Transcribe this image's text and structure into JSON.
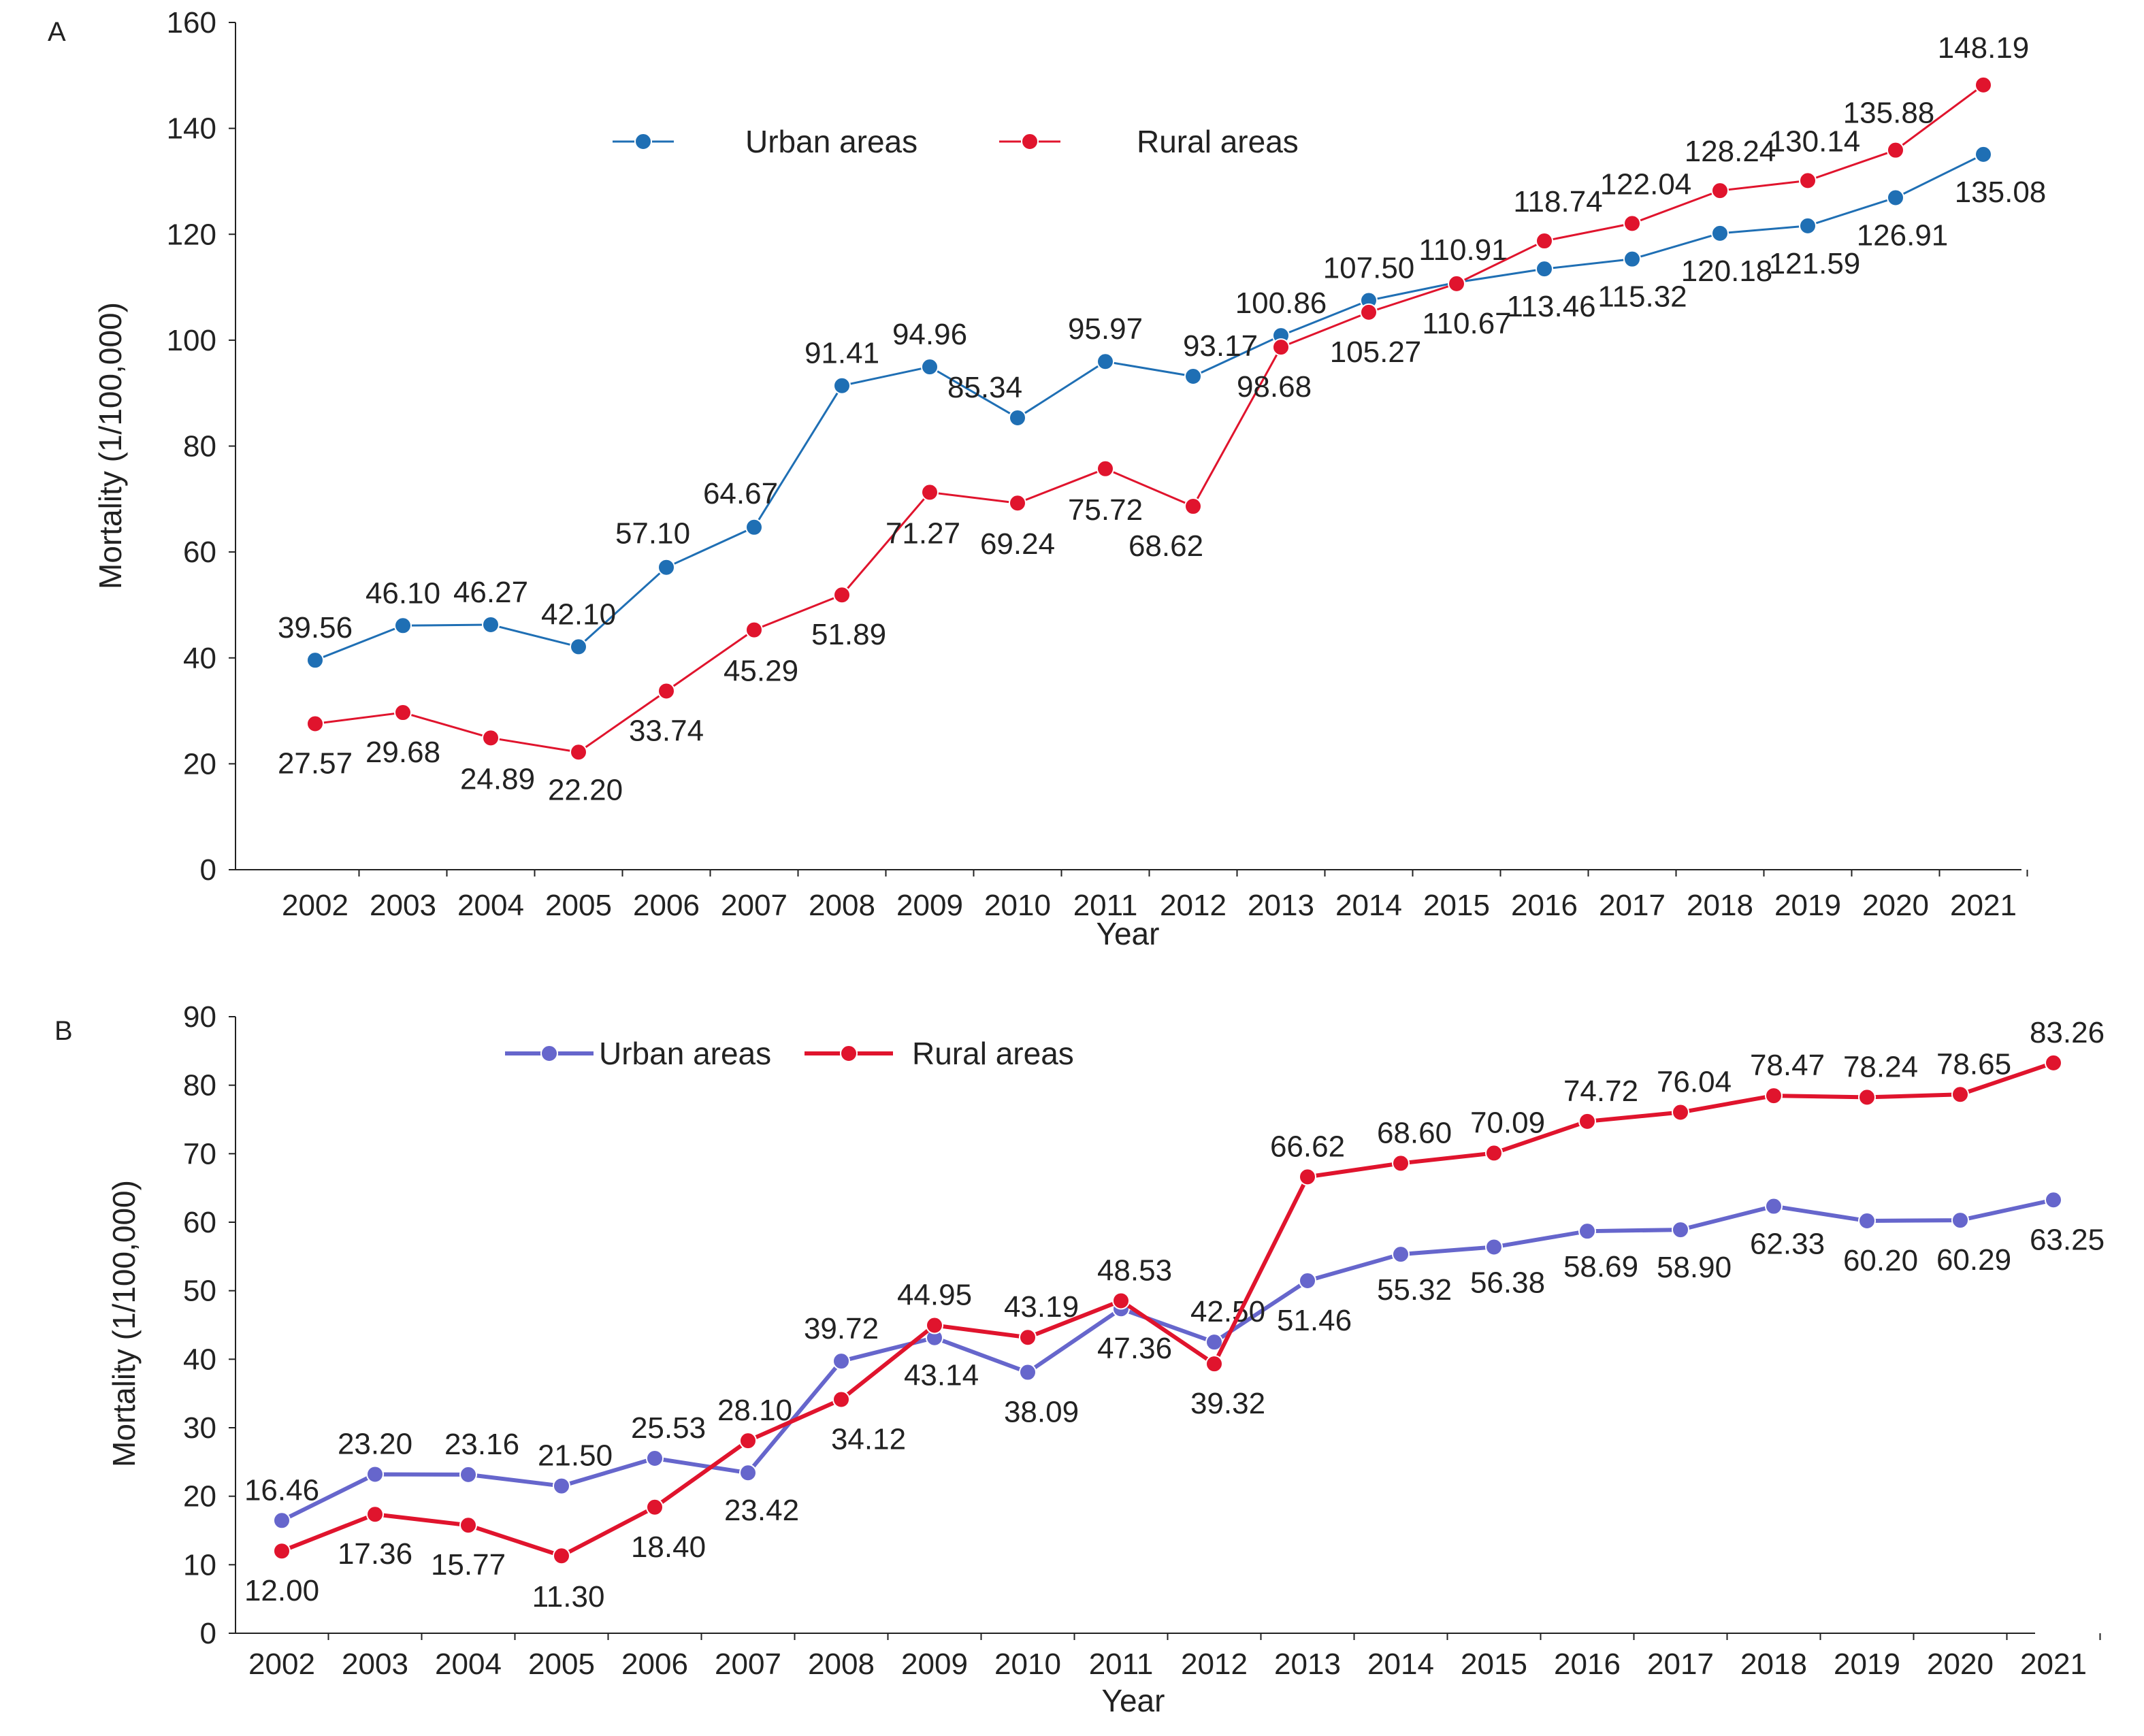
{
  "chart_data": [
    {
      "panel": "A",
      "type": "line",
      "xlabel": "Year",
      "ylabel": "Mortality (1/100,000)",
      "ylim": [
        0,
        160
      ],
      "yticks": [
        0,
        20,
        40,
        60,
        80,
        100,
        120,
        140,
        160
      ],
      "categories": [
        "2002",
        "2003",
        "2004",
        "2005",
        "2006",
        "2007",
        "2008",
        "2009",
        "2010",
        "2011",
        "2012",
        "2013",
        "2014",
        "2015",
        "2016",
        "2017",
        "2018",
        "2019",
        "2020",
        "2021"
      ],
      "legend_position": "top-center",
      "grid": false,
      "series": [
        {
          "name": "Urban areas",
          "color": "#1f6fb4",
          "marker": "circle",
          "values": [
            39.56,
            46.1,
            46.27,
            42.1,
            57.1,
            64.67,
            91.41,
            94.96,
            85.34,
            95.97,
            93.17,
            100.86,
            107.5,
            110.91,
            113.46,
            115.32,
            120.18,
            121.59,
            126.91,
            135.08
          ],
          "labels": [
            "39.56",
            "46.10",
            "46.27",
            "42.10",
            "57.10",
            "64.67",
            "91.41",
            "94.96",
            "85.34",
            "95.97",
            "93.17",
            "100.86",
            "107.50",
            "110.91",
            "113.46",
            "115.32",
            "120.18",
            "121.59",
            "126.91",
            "135.08"
          ]
        },
        {
          "name": "Rural areas",
          "color": "#e0142d",
          "marker": "circle",
          "values": [
            27.57,
            29.68,
            24.89,
            22.2,
            33.74,
            45.29,
            51.89,
            71.27,
            69.24,
            75.72,
            68.62,
            98.68,
            105.27,
            110.67,
            118.74,
            122.04,
            128.24,
            130.14,
            135.88,
            148.19
          ],
          "labels": [
            "27.57",
            "29.68",
            "24.89",
            "22.20",
            "33.74",
            "45.29",
            "51.89",
            "71.27",
            "69.24",
            "75.72",
            "68.62",
            "98.68",
            "105.27",
            "110.67",
            "118.74",
            "122.04",
            "128.24",
            "130.14",
            "135.88",
            "148.19"
          ]
        }
      ]
    },
    {
      "panel": "B",
      "type": "line",
      "xlabel": "Year",
      "ylabel": "Mortality (1/100,000)",
      "ylim": [
        0,
        90
      ],
      "yticks": [
        0,
        10,
        20,
        30,
        40,
        50,
        60,
        70,
        80,
        90
      ],
      "categories": [
        "2002",
        "2003",
        "2004",
        "2005",
        "2006",
        "2007",
        "2008",
        "2009",
        "2010",
        "2011",
        "2012",
        "2013",
        "2014",
        "2015",
        "2016",
        "2017",
        "2018",
        "2019",
        "2020",
        "2021"
      ],
      "legend_position": "top-left",
      "grid": false,
      "series": [
        {
          "name": "Urban areas",
          "color": "#6666cc",
          "marker": "circle",
          "values": [
            16.46,
            23.2,
            23.16,
            21.5,
            25.53,
            23.42,
            39.72,
            43.14,
            38.09,
            47.36,
            42.5,
            51.46,
            55.32,
            56.38,
            58.69,
            58.9,
            62.33,
            60.2,
            60.29,
            63.25
          ],
          "labels": [
            "16.46",
            "23.20",
            "23.16",
            "21.50",
            "25.53",
            "23.42",
            "39.72",
            "43.14",
            "38.09",
            "47.36",
            "42.50",
            "51.46",
            "55.32",
            "56.38",
            "58.69",
            "58.90",
            "62.33",
            "60.20",
            "60.29",
            "63.25"
          ]
        },
        {
          "name": "Rural areas",
          "color": "#e0142d",
          "marker": "circle",
          "values": [
            12.0,
            17.36,
            15.77,
            11.3,
            18.4,
            28.1,
            34.12,
            44.95,
            43.19,
            48.53,
            39.32,
            66.62,
            68.6,
            70.09,
            74.72,
            76.04,
            78.47,
            78.24,
            78.65,
            83.26
          ],
          "labels": [
            "12.00",
            "17.36",
            "15.77",
            "11.30",
            "18.40",
            "28.10",
            "34.12",
            "44.95",
            "43.19",
            "48.53",
            "39.32",
            "66.62",
            "68.60",
            "70.09",
            "74.72",
            "76.04",
            "78.47",
            "78.24",
            "78.65",
            "83.26"
          ]
        }
      ]
    }
  ]
}
